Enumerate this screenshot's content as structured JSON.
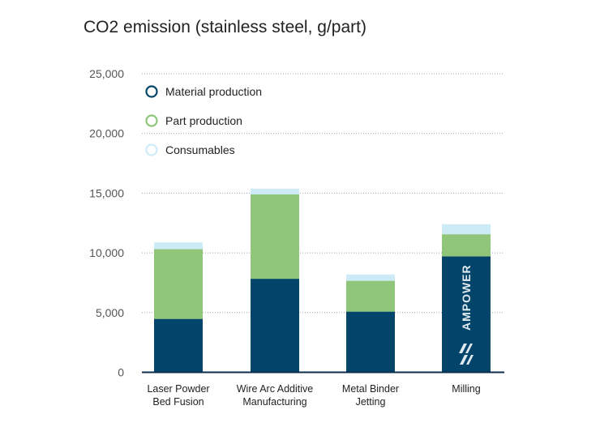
{
  "chart_data": {
    "type": "bar",
    "stacked": true,
    "title": "CO2 emission (stainless steel, g/part)",
    "xlabel": "",
    "ylabel": "",
    "ylim": [
      0,
      25000
    ],
    "yticks": [
      0,
      5000,
      10000,
      15000,
      20000,
      25000
    ],
    "ytick_labels": [
      "0",
      "5,000",
      "10,000",
      "15,000",
      "20,000",
      "25,000"
    ],
    "grid": "horizontal dotted",
    "legend": "top-left",
    "categories": [
      [
        "Laser Powder",
        "Bed Fusion"
      ],
      [
        "Wire Arc Additive",
        "Manufacturing"
      ],
      [
        "Metal Binder",
        "Jetting"
      ],
      [
        "Milling"
      ]
    ],
    "series": [
      {
        "name": "Material production",
        "color": "#03446a",
        "values": [
          4470,
          7830,
          5080,
          9700
        ]
      },
      {
        "name": "Part production",
        "color": "#8fc679",
        "values": [
          5840,
          7060,
          2580,
          1860
        ]
      },
      {
        "name": "Consumables",
        "color": "#cdebf6",
        "values": [
          570,
          480,
          530,
          840
        ]
      }
    ],
    "watermark": "AMPOWER"
  }
}
